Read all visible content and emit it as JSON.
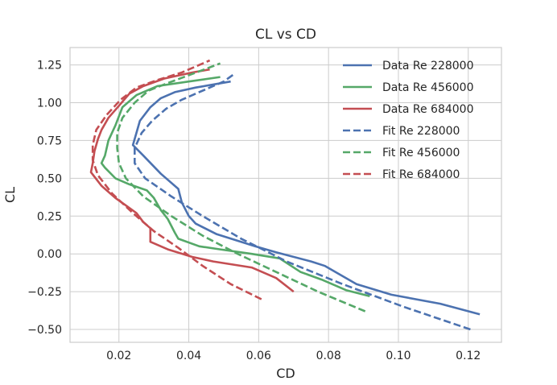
{
  "chart_data": {
    "type": "line",
    "title": "CL vs CD",
    "xlabel": "CD",
    "ylabel": "CL",
    "xlim": [
      0.006,
      0.1295
    ],
    "ylim": [
      -0.585,
      1.365
    ],
    "grid": true,
    "legend_position": "top-right",
    "x_ticks": [
      0.02,
      0.04,
      0.06,
      0.08,
      0.1,
      0.12
    ],
    "x_tick_labels": [
      "0.02",
      "0.04",
      "0.06",
      "0.08",
      "0.10",
      "0.12"
    ],
    "y_ticks": [
      -0.5,
      -0.25,
      0.0,
      0.25,
      0.5,
      0.75,
      1.0,
      1.25
    ],
    "y_tick_labels": [
      "−0.50",
      "−0.25",
      "0.00",
      "0.25",
      "0.50",
      "0.75",
      "1.00",
      "1.25"
    ],
    "series": [
      {
        "name": "Data Re 228000",
        "color": "#4c72b0",
        "dash": "solid",
        "points": [
          [
            0.1233,
            -0.4
          ],
          [
            0.112,
            -0.33
          ],
          [
            0.098,
            -0.27
          ],
          [
            0.088,
            -0.2
          ],
          [
            0.079,
            -0.08
          ],
          [
            0.075,
            -0.05
          ],
          [
            0.065,
            0.01
          ],
          [
            0.059,
            0.05
          ],
          [
            0.048,
            0.13
          ],
          [
            0.042,
            0.2
          ],
          [
            0.04,
            0.25
          ],
          [
            0.038,
            0.34
          ],
          [
            0.037,
            0.43
          ],
          [
            0.032,
            0.53
          ],
          [
            0.027,
            0.65
          ],
          [
            0.024,
            0.72
          ],
          [
            0.025,
            0.8
          ],
          [
            0.026,
            0.88
          ],
          [
            0.029,
            0.97
          ],
          [
            0.032,
            1.03
          ],
          [
            0.036,
            1.07
          ],
          [
            0.042,
            1.1
          ],
          [
            0.052,
            1.14
          ]
        ]
      },
      {
        "name": "Data Re 456000",
        "color": "#55a868",
        "dash": "solid",
        "points": [
          [
            0.0918,
            -0.28
          ],
          [
            0.085,
            -0.24
          ],
          [
            0.078,
            -0.17
          ],
          [
            0.072,
            -0.12
          ],
          [
            0.066,
            -0.03
          ],
          [
            0.058,
            0.0
          ],
          [
            0.049,
            0.03
          ],
          [
            0.043,
            0.05
          ],
          [
            0.037,
            0.1
          ],
          [
            0.036,
            0.14
          ],
          [
            0.034,
            0.23
          ],
          [
            0.032,
            0.29
          ],
          [
            0.03,
            0.37
          ],
          [
            0.028,
            0.42
          ],
          [
            0.023,
            0.46
          ],
          [
            0.019,
            0.5
          ],
          [
            0.016,
            0.57
          ],
          [
            0.015,
            0.6
          ],
          [
            0.016,
            0.65
          ],
          [
            0.017,
            0.75
          ],
          [
            0.019,
            0.85
          ],
          [
            0.021,
            0.97
          ],
          [
            0.025,
            1.05
          ],
          [
            0.031,
            1.11
          ],
          [
            0.04,
            1.14
          ],
          [
            0.049,
            1.17
          ]
        ]
      },
      {
        "name": "Data Re 684000",
        "color": "#c44e52",
        "dash": "solid",
        "points": [
          [
            0.07,
            -0.25
          ],
          [
            0.065,
            -0.16
          ],
          [
            0.058,
            -0.09
          ],
          [
            0.047,
            -0.05
          ],
          [
            0.041,
            -0.02
          ],
          [
            0.034,
            0.03
          ],
          [
            0.029,
            0.08
          ],
          [
            0.029,
            0.1
          ],
          [
            0.029,
            0.17
          ],
          [
            0.027,
            0.21
          ],
          [
            0.025,
            0.27
          ],
          [
            0.022,
            0.32
          ],
          [
            0.019,
            0.37
          ],
          [
            0.015,
            0.45
          ],
          [
            0.012,
            0.54
          ],
          [
            0.0125,
            0.6
          ],
          [
            0.013,
            0.68
          ],
          [
            0.014,
            0.76
          ],
          [
            0.015,
            0.82
          ],
          [
            0.017,
            0.9
          ],
          [
            0.02,
            0.98
          ],
          [
            0.023,
            1.06
          ],
          [
            0.027,
            1.11
          ],
          [
            0.033,
            1.16
          ],
          [
            0.041,
            1.2
          ],
          [
            0.046,
            1.22
          ]
        ]
      },
      {
        "name": "Fit Re 228000",
        "color": "#4c72b0",
        "dash": "dashed",
        "points": [
          [
            0.1206,
            -0.5
          ],
          [
            0.1015,
            -0.35
          ],
          [
            0.084,
            -0.2
          ],
          [
            0.068,
            -0.05
          ],
          [
            0.055,
            0.1
          ],
          [
            0.044,
            0.25
          ],
          [
            0.035,
            0.38
          ],
          [
            0.0275,
            0.5
          ],
          [
            0.0245,
            0.6
          ],
          [
            0.0245,
            0.7
          ],
          [
            0.0265,
            0.8
          ],
          [
            0.0295,
            0.88
          ],
          [
            0.0335,
            0.96
          ],
          [
            0.038,
            1.02
          ],
          [
            0.044,
            1.08
          ],
          [
            0.05,
            1.14
          ],
          [
            0.053,
            1.19
          ]
        ]
      },
      {
        "name": "Fit Re 456000",
        "color": "#55a868",
        "dash": "dashed",
        "points": [
          [
            0.0905,
            -0.38
          ],
          [
            0.077,
            -0.25
          ],
          [
            0.065,
            -0.12
          ],
          [
            0.054,
            0.0
          ],
          [
            0.044,
            0.12
          ],
          [
            0.035,
            0.25
          ],
          [
            0.027,
            0.38
          ],
          [
            0.022,
            0.5
          ],
          [
            0.02,
            0.6
          ],
          [
            0.0195,
            0.7
          ],
          [
            0.0195,
            0.8
          ],
          [
            0.021,
            0.9
          ],
          [
            0.0245,
            1.0
          ],
          [
            0.0285,
            1.08
          ],
          [
            0.034,
            1.13
          ],
          [
            0.041,
            1.19
          ],
          [
            0.049,
            1.26
          ]
        ]
      },
      {
        "name": "Fit Re 684000",
        "color": "#c44e52",
        "dash": "dashed",
        "points": [
          [
            0.0608,
            -0.3
          ],
          [
            0.052,
            -0.2
          ],
          [
            0.044,
            -0.08
          ],
          [
            0.037,
            0.04
          ],
          [
            0.03,
            0.15
          ],
          [
            0.024,
            0.27
          ],
          [
            0.018,
            0.4
          ],
          [
            0.014,
            0.52
          ],
          [
            0.0125,
            0.62
          ],
          [
            0.0125,
            0.72
          ],
          [
            0.0135,
            0.82
          ],
          [
            0.0165,
            0.92
          ],
          [
            0.0205,
            1.02
          ],
          [
            0.025,
            1.1
          ],
          [
            0.031,
            1.15
          ],
          [
            0.038,
            1.2
          ],
          [
            0.046,
            1.28
          ]
        ]
      }
    ]
  }
}
